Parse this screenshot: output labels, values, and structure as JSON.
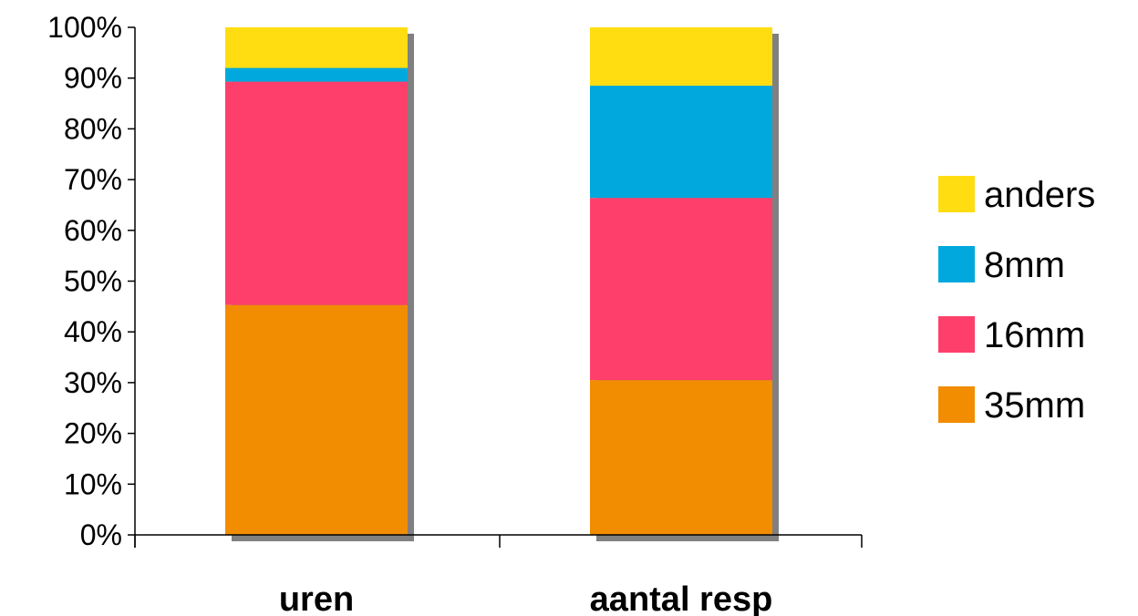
{
  "chart_data": {
    "type": "bar",
    "stacked": true,
    "percent": true,
    "categories": [
      "uren",
      "aantal resp"
    ],
    "series": [
      {
        "name": "35mm",
        "values": [
          45.3,
          30.5
        ],
        "color": "#F28C00"
      },
      {
        "name": "16mm",
        "values": [
          44.0,
          35.9
        ],
        "color": "#FF3F6B"
      },
      {
        "name": "8mm",
        "values": [
          2.7,
          22.1
        ],
        "color": "#00A8DD"
      },
      {
        "name": "anders",
        "values": [
          8.0,
          11.5
        ],
        "color": "#FFDD11"
      }
    ],
    "y_ticks": [
      "0%",
      "10%",
      "20%",
      "30%",
      "40%",
      "50%",
      "60%",
      "70%",
      "80%",
      "90%",
      "100%"
    ],
    "ylim": [
      0,
      100
    ],
    "title": "",
    "xlabel": "",
    "ylabel": "",
    "grid": false,
    "legend": "right",
    "shadow_color": "#808080"
  }
}
